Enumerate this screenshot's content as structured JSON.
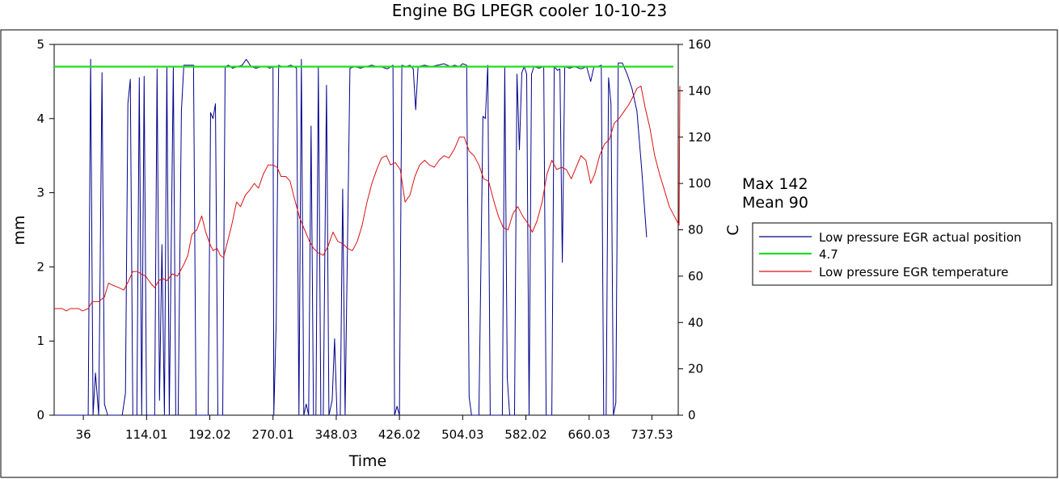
{
  "chart_data": {
    "type": "line",
    "title": "Engine BG LPEGR cooler 10-10-23",
    "xlabel": "Time",
    "ylabel_left": "mm",
    "ylabel_right": "C",
    "x_range": [
      0,
      770
    ],
    "ylim_left": [
      0,
      5
    ],
    "ylim_right": [
      0,
      160
    ],
    "x_ticks": [
      "36",
      "114.01",
      "192.02",
      "270.01",
      "348.03",
      "426.02",
      "504.03",
      "582.02",
      "660.03",
      "737.53"
    ],
    "x_tick_values": [
      36,
      114.01,
      192.02,
      270.01,
      348.03,
      426.02,
      504.03,
      582.02,
      660.03,
      737.53
    ],
    "y_ticks_left": [
      0,
      1,
      2,
      3,
      4,
      5
    ],
    "y_ticks_right": [
      0,
      20,
      40,
      60,
      80,
      100,
      120,
      140,
      160
    ],
    "grid": false,
    "legend_position": "right",
    "annotations": [
      "Max 142",
      "Mean 90"
    ],
    "series": [
      {
        "name": "Low pressure EGR actual position",
        "axis": "left",
        "color": "#00008b",
        "points": [
          [
            0,
            0
          ],
          [
            42,
            0
          ],
          [
            45,
            4.8
          ],
          [
            48,
            0
          ],
          [
            51,
            0.57
          ],
          [
            55,
            0
          ],
          [
            59,
            4.62
          ],
          [
            62,
            0.15
          ],
          [
            66,
            0
          ],
          [
            84,
            0
          ],
          [
            88,
            0.3
          ],
          [
            91,
            4.2
          ],
          [
            94,
            4.53
          ],
          [
            97,
            0
          ],
          [
            102,
            0
          ],
          [
            105,
            4.55
          ],
          [
            108,
            0
          ],
          [
            111,
            4.57
          ],
          [
            114,
            0
          ],
          [
            124,
            0
          ],
          [
            127,
            4.67
          ],
          [
            130,
            0.2
          ],
          [
            133,
            2.3
          ],
          [
            136,
            0
          ],
          [
            139,
            4.7
          ],
          [
            142,
            0
          ],
          [
            147,
            4.7
          ],
          [
            150,
            0
          ],
          [
            153,
            0
          ],
          [
            157,
            4.1
          ],
          [
            160,
            4.72
          ],
          [
            166,
            4.72
          ],
          [
            172,
            4.72
          ],
          [
            175,
            0
          ],
          [
            190,
            0
          ],
          [
            193,
            4.08
          ],
          [
            196,
            4.0
          ],
          [
            199,
            4.2
          ],
          [
            202,
            0
          ],
          [
            205,
            0
          ],
          [
            208,
            0
          ],
          [
            211,
            4.7
          ],
          [
            215,
            4.72
          ],
          [
            220,
            4.68
          ],
          [
            226,
            4.7
          ],
          [
            232,
            4.72
          ],
          [
            237,
            4.8
          ],
          [
            243,
            4.7
          ],
          [
            249,
            4.68
          ],
          [
            256,
            4.7
          ],
          [
            262,
            4.7
          ],
          [
            266,
            4.68
          ],
          [
            270,
            4.7
          ],
          [
            271,
            0
          ],
          [
            274,
            1.27
          ],
          [
            277,
            4.72
          ],
          [
            281,
            4.7
          ],
          [
            286,
            4.7
          ],
          [
            292,
            4.72
          ],
          [
            296,
            4.7
          ],
          [
            299,
            4.68
          ],
          [
            302,
            0
          ],
          [
            305,
            4.8
          ],
          [
            308,
            0
          ],
          [
            311,
            0.15
          ],
          [
            314,
            0
          ],
          [
            317,
            3.9
          ],
          [
            320,
            0
          ],
          [
            323,
            0
          ],
          [
            326,
            4.7
          ],
          [
            329,
            0
          ],
          [
            332,
            0
          ],
          [
            336,
            4.45
          ],
          [
            339,
            0
          ],
          [
            343,
            0.2
          ],
          [
            346,
            1.03
          ],
          [
            349,
            0
          ],
          [
            353,
            0
          ],
          [
            356,
            3.05
          ],
          [
            359,
            0
          ],
          [
            365,
            4.68
          ],
          [
            371,
            4.7
          ],
          [
            378,
            4.68
          ],
          [
            384,
            4.7
          ],
          [
            392,
            4.72
          ],
          [
            398,
            4.7
          ],
          [
            403,
            4.7
          ],
          [
            411,
            4.67
          ],
          [
            418,
            4.72
          ],
          [
            420,
            0
          ],
          [
            423,
            0.12
          ],
          [
            426,
            0
          ],
          [
            429,
            4.72
          ],
          [
            434,
            4.7
          ],
          [
            439,
            4.72
          ],
          [
            443,
            4.67
          ],
          [
            446,
            4.12
          ],
          [
            449,
            4.7
          ],
          [
            457,
            4.72
          ],
          [
            465,
            4.7
          ],
          [
            473,
            4.72
          ],
          [
            481,
            4.74
          ],
          [
            489,
            4.7
          ],
          [
            494,
            4.72
          ],
          [
            500,
            4.7
          ],
          [
            504,
            4.74
          ],
          [
            509,
            4.72
          ],
          [
            512,
            0.25
          ],
          [
            515,
            0
          ],
          [
            524,
            0
          ],
          [
            529,
            4.03
          ],
          [
            532,
            4.0
          ],
          [
            535,
            4.72
          ],
          [
            538,
            0
          ],
          [
            553,
            0
          ],
          [
            556,
            4.7
          ],
          [
            559,
            0.5
          ],
          [
            562,
            0
          ],
          [
            568,
            0
          ],
          [
            571,
            4.6
          ],
          [
            574,
            3.58
          ],
          [
            577,
            4.62
          ],
          [
            580,
            4.7
          ],
          [
            583,
            4.6
          ],
          [
            586,
            0
          ],
          [
            589,
            4.6
          ],
          [
            592,
            4.7
          ],
          [
            598,
            4.68
          ],
          [
            604,
            4.7
          ],
          [
            607,
            0
          ],
          [
            614,
            0
          ],
          [
            617,
            4.7
          ],
          [
            621,
            4.65
          ],
          [
            624,
            4.67
          ],
          [
            627,
            2.06
          ],
          [
            630,
            4.7
          ],
          [
            636,
            4.68
          ],
          [
            642,
            4.7
          ],
          [
            650,
            4.67
          ],
          [
            657,
            4.7
          ],
          [
            662,
            4.5
          ],
          [
            666,
            4.7
          ],
          [
            670,
            4.7
          ],
          [
            675,
            4.72
          ],
          [
            678,
            0
          ],
          [
            681,
            0
          ],
          [
            684,
            4.55
          ],
          [
            687,
            4.2
          ],
          [
            690,
            0
          ],
          [
            693,
            0.17
          ],
          [
            696,
            4.75
          ],
          [
            701,
            4.75
          ],
          [
            707,
            4.6
          ],
          [
            713,
            4.4
          ],
          [
            719,
            4.1
          ],
          [
            725,
            3.3
          ],
          [
            731,
            2.4
          ]
        ]
      },
      {
        "name": "4.7",
        "axis": "left",
        "color": "#22dd22",
        "points": [
          [
            0,
            4.7
          ],
          [
            764,
            4.7
          ]
        ]
      },
      {
        "name": "Low pressure EGR temperature",
        "axis": "right",
        "color": "#dd1111",
        "points": [
          [
            0,
            46
          ],
          [
            10,
            46
          ],
          [
            15,
            45
          ],
          [
            20,
            46
          ],
          [
            30,
            46
          ],
          [
            35,
            45
          ],
          [
            42,
            46
          ],
          [
            47,
            49
          ],
          [
            55,
            49
          ],
          [
            62,
            51
          ],
          [
            67,
            57
          ],
          [
            73,
            56
          ],
          [
            80,
            55
          ],
          [
            86,
            54
          ],
          [
            92,
            58
          ],
          [
            97,
            62
          ],
          [
            103,
            62
          ],
          [
            107,
            61
          ],
          [
            113,
            60
          ],
          [
            119,
            57
          ],
          [
            124,
            55
          ],
          [
            129,
            58
          ],
          [
            134,
            59
          ],
          [
            139,
            58
          ],
          [
            146,
            61
          ],
          [
            152,
            60
          ],
          [
            160,
            65
          ],
          [
            165,
            69
          ],
          [
            170,
            78
          ],
          [
            176,
            80
          ],
          [
            182,
            86
          ],
          [
            187,
            79
          ],
          [
            192,
            74
          ],
          [
            196,
            71
          ],
          [
            201,
            72
          ],
          [
            205,
            69
          ],
          [
            209,
            68
          ],
          [
            214,
            75
          ],
          [
            219,
            82
          ],
          [
            225,
            92
          ],
          [
            230,
            90
          ],
          [
            236,
            95
          ],
          [
            241,
            97
          ],
          [
            247,
            100
          ],
          [
            252,
            98
          ],
          [
            258,
            104
          ],
          [
            264,
            108
          ],
          [
            270,
            108
          ],
          [
            275,
            107
          ],
          [
            280,
            103
          ],
          [
            286,
            103
          ],
          [
            291,
            101
          ],
          [
            296,
            94
          ],
          [
            303,
            85
          ],
          [
            309,
            80
          ],
          [
            315,
            75
          ],
          [
            320,
            72
          ],
          [
            326,
            70
          ],
          [
            332,
            69
          ],
          [
            338,
            73
          ],
          [
            344,
            79
          ],
          [
            350,
            75
          ],
          [
            356,
            74
          ],
          [
            362,
            72
          ],
          [
            368,
            71
          ],
          [
            374,
            75
          ],
          [
            380,
            82
          ],
          [
            386,
            92
          ],
          [
            392,
            100
          ],
          [
            398,
            106
          ],
          [
            404,
            111
          ],
          [
            410,
            112
          ],
          [
            415,
            108
          ],
          [
            421,
            109
          ],
          [
            427,
            106
          ],
          [
            433,
            92
          ],
          [
            439,
            95
          ],
          [
            445,
            103
          ],
          [
            451,
            108
          ],
          [
            457,
            110
          ],
          [
            463,
            108
          ],
          [
            469,
            107
          ],
          [
            475,
            110
          ],
          [
            481,
            112
          ],
          [
            487,
            111
          ],
          [
            494,
            115
          ],
          [
            500,
            120
          ],
          [
            506,
            120
          ],
          [
            512,
            114
          ],
          [
            518,
            112
          ],
          [
            524,
            108
          ],
          [
            530,
            102
          ],
          [
            536,
            101
          ],
          [
            542,
            93
          ],
          [
            548,
            86
          ],
          [
            554,
            81
          ],
          [
            560,
            80
          ],
          [
            566,
            87
          ],
          [
            572,
            90
          ],
          [
            578,
            86
          ],
          [
            584,
            83
          ],
          [
            590,
            79
          ],
          [
            596,
            84
          ],
          [
            602,
            92
          ],
          [
            608,
            104
          ],
          [
            614,
            110
          ],
          [
            620,
            106
          ],
          [
            626,
            107
          ],
          [
            632,
            106
          ],
          [
            638,
            102
          ],
          [
            644,
            107
          ],
          [
            650,
            112
          ],
          [
            656,
            110
          ],
          [
            662,
            100
          ],
          [
            667,
            104
          ],
          [
            673,
            112
          ],
          [
            679,
            117
          ],
          [
            685,
            119
          ],
          [
            691,
            126
          ],
          [
            697,
            128
          ],
          [
            703,
            131
          ],
          [
            709,
            134
          ],
          [
            715,
            138
          ],
          [
            719,
            141
          ],
          [
            724,
            142
          ],
          [
            729,
            133
          ],
          [
            735,
            124
          ],
          [
            741,
            112
          ],
          [
            747,
            104
          ],
          [
            753,
            97
          ],
          [
            759,
            90
          ],
          [
            765,
            86
          ],
          [
            771,
            82
          ],
          [
            772,
            142
          ]
        ]
      }
    ]
  },
  "stats": {
    "max_label": "Max 142",
    "mean_label": "Mean 90"
  },
  "legend": {
    "items": [
      {
        "label": "Low pressure EGR actual position",
        "color": "#00008b"
      },
      {
        "label": "4.7",
        "color": "#22dd22"
      },
      {
        "label": "Low pressure EGR temperature",
        "color": "#dd1111"
      }
    ]
  }
}
